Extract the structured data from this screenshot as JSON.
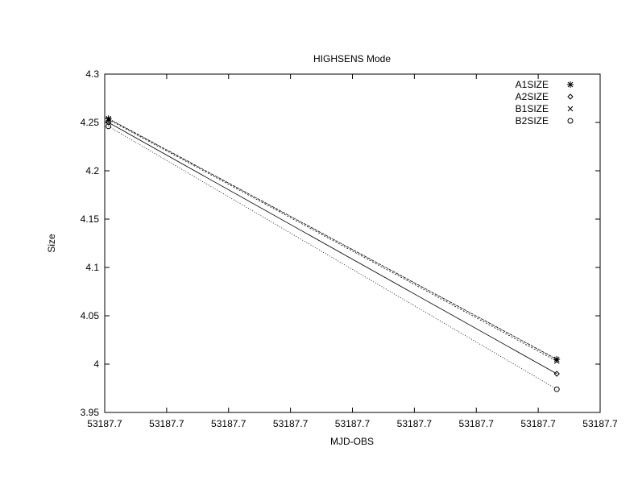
{
  "chart_data": {
    "type": "line",
    "title": "HIGHSENS Mode",
    "xlabel": "MJD-OBS",
    "ylabel": "Size",
    "xlim": [
      0,
      8
    ],
    "ylim": [
      3.95,
      4.3
    ],
    "x_tick_labels": [
      "53187.7",
      "53187.7",
      "53187.7",
      "53187.7",
      "53187.7",
      "53187.7",
      "53187.7",
      "53187.7",
      "53187.7"
    ],
    "y_ticks": [
      3.95,
      4.0,
      4.05,
      4.1,
      4.15,
      4.2,
      4.25,
      4.3
    ],
    "y_tick_labels": [
      "3.95",
      "4",
      "4.05",
      "4.1",
      "4.15",
      "4.2",
      "4.25",
      "4.3"
    ],
    "legend_position": "top-right",
    "grid": false,
    "series": [
      {
        "name": "A1SIZE",
        "marker": "asterisk",
        "dash": "4,1",
        "x": [
          0.06,
          7.3
        ],
        "y": [
          4.254,
          4.005
        ]
      },
      {
        "name": "A2SIZE",
        "marker": "diamond",
        "dash": "",
        "x": [
          0.06,
          7.3
        ],
        "y": [
          4.25,
          3.99
        ]
      },
      {
        "name": "B1SIZE",
        "marker": "cross",
        "dash": "2,2",
        "x": [
          0.06,
          7.3
        ],
        "y": [
          4.253,
          4.003
        ]
      },
      {
        "name": "B2SIZE",
        "marker": "circle",
        "dash": "1,2",
        "x": [
          0.06,
          7.3
        ],
        "y": [
          4.246,
          3.974
        ]
      }
    ]
  }
}
